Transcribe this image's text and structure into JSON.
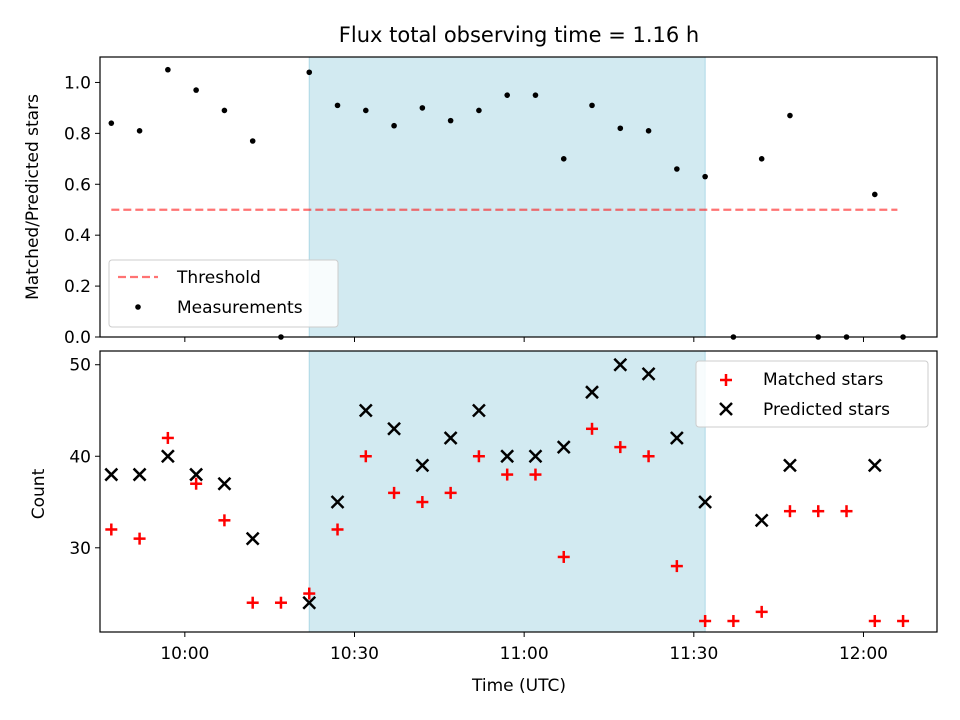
{
  "chart_data": [
    {
      "type": "scatter",
      "title": "Flux total observing time = 1.16 h",
      "xlabel": "",
      "ylabel": "Matched/Predicted stars",
      "ylim": [
        0,
        1.1
      ],
      "yticks": [
        "0.0",
        "0.2",
        "0.4",
        "0.6",
        "0.8",
        "1.0"
      ],
      "xlim": [
        "09:45",
        "12:13"
      ],
      "shaded_region": {
        "x": [
          "10:22",
          "11:32"
        ],
        "color": "#add8e6"
      },
      "threshold": {
        "label": "Threshold",
        "value": 0.5,
        "x": [
          "09:47",
          "12:06"
        ],
        "color": "#ff0000"
      },
      "series": [
        {
          "name": "Measurements",
          "marker": "dot",
          "color": "#000000",
          "points": [
            [
              "09:47",
              0.84
            ],
            [
              "09:52",
              0.81
            ],
            [
              "09:57",
              1.05
            ],
            [
              "10:02",
              0.97
            ],
            [
              "10:07",
              0.89
            ],
            [
              "10:12",
              0.77
            ],
            [
              "10:17",
              0.0
            ],
            [
              "10:22",
              1.04
            ],
            [
              "10:27",
              0.91
            ],
            [
              "10:32",
              0.89
            ],
            [
              "10:37",
              0.83
            ],
            [
              "10:42",
              0.9
            ],
            [
              "10:47",
              0.85
            ],
            [
              "10:52",
              0.89
            ],
            [
              "10:57",
              0.95
            ],
            [
              "11:02",
              0.95
            ],
            [
              "11:07",
              0.7
            ],
            [
              "11:12",
              0.91
            ],
            [
              "11:17",
              0.82
            ],
            [
              "11:22",
              0.81
            ],
            [
              "11:27",
              0.66
            ],
            [
              "11:32",
              0.63
            ],
            [
              "11:37",
              0.0
            ],
            [
              "11:42",
              0.7
            ],
            [
              "11:47",
              0.87
            ],
            [
              "11:52",
              0.0
            ],
            [
              "11:57",
              0.0
            ],
            [
              "12:02",
              0.56
            ],
            [
              "12:07",
              0.0
            ]
          ]
        }
      ],
      "legend": {
        "placement": "lower-left",
        "entries": [
          "Threshold",
          "Measurements"
        ]
      }
    },
    {
      "type": "scatter",
      "title": "",
      "xlabel": "Time (UTC)",
      "ylabel": "Count",
      "ylim": [
        20.8,
        51.5
      ],
      "yticks": [
        "30",
        "40",
        "50"
      ],
      "xticks": [
        "10:00",
        "10:30",
        "11:00",
        "11:30",
        "12:00"
      ],
      "xlim": [
        "09:45",
        "12:13"
      ],
      "shaded_region": {
        "x": [
          "10:22",
          "11:32"
        ],
        "color": "#add8e6"
      },
      "series": [
        {
          "name": "Matched stars",
          "marker": "plus",
          "color": "#ff0000",
          "points": [
            [
              "09:47",
              32
            ],
            [
              "09:52",
              31
            ],
            [
              "09:57",
              42
            ],
            [
              "10:02",
              37
            ],
            [
              "10:07",
              33
            ],
            [
              "10:12",
              24
            ],
            [
              "10:17",
              24
            ],
            [
              "10:22",
              25
            ],
            [
              "10:27",
              32
            ],
            [
              "10:32",
              40
            ],
            [
              "10:37",
              36
            ],
            [
              "10:42",
              35
            ],
            [
              "10:47",
              36
            ],
            [
              "10:52",
              40
            ],
            [
              "10:57",
              38
            ],
            [
              "11:02",
              38
            ],
            [
              "11:07",
              29
            ],
            [
              "11:12",
              43
            ],
            [
              "11:17",
              41
            ],
            [
              "11:22",
              40
            ],
            [
              "11:27",
              28
            ],
            [
              "11:32",
              22
            ],
            [
              "11:37",
              22
            ],
            [
              "11:42",
              23
            ],
            [
              "11:47",
              34
            ],
            [
              "11:52",
              34
            ],
            [
              "11:57",
              34
            ],
            [
              "12:02",
              22
            ],
            [
              "12:07",
              22
            ]
          ]
        },
        {
          "name": "Predicted stars",
          "marker": "x",
          "color": "#000000",
          "points": [
            [
              "09:47",
              38
            ],
            [
              "09:52",
              38
            ],
            [
              "09:57",
              40
            ],
            [
              "10:02",
              38
            ],
            [
              "10:07",
              37
            ],
            [
              "10:12",
              31
            ],
            [
              "10:22",
              24
            ],
            [
              "10:27",
              35
            ],
            [
              "10:32",
              45
            ],
            [
              "10:37",
              43
            ],
            [
              "10:42",
              39
            ],
            [
              "10:47",
              42
            ],
            [
              "10:52",
              45
            ],
            [
              "10:57",
              40
            ],
            [
              "11:02",
              40
            ],
            [
              "11:07",
              41
            ],
            [
              "11:12",
              47
            ],
            [
              "11:17",
              50
            ],
            [
              "11:22",
              49
            ],
            [
              "11:27",
              42
            ],
            [
              "11:32",
              35
            ],
            [
              "11:42",
              33
            ],
            [
              "11:47",
              39
            ],
            [
              "12:02",
              39
            ]
          ]
        }
      ],
      "legend": {
        "placement": "upper-right",
        "entries": [
          "Matched stars",
          "Predicted stars"
        ]
      }
    }
  ]
}
